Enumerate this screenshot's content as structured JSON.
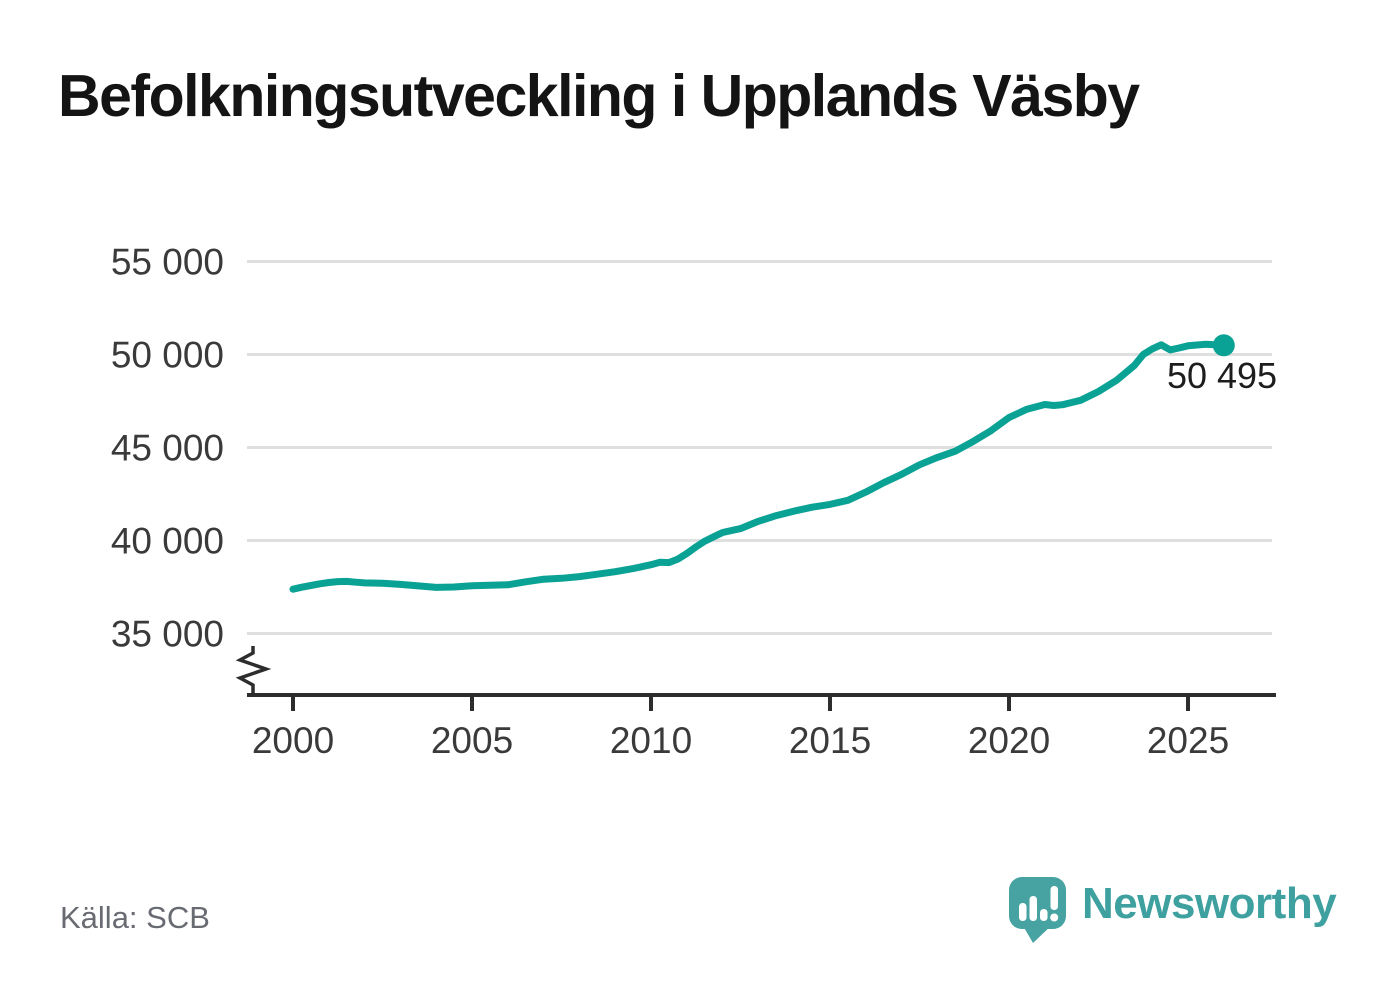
{
  "title": "Befolkningsutveckling i Upplands Väsby",
  "source": {
    "label": "Källa: SCB"
  },
  "brand": {
    "name": "Newsworthy",
    "icon": "newsworthy-speech-bubble-chart-icon",
    "color": "#3fa0a0"
  },
  "colors": {
    "line": "#0aa294",
    "grid": "#dfdfdf",
    "axis": "#2d2d2d",
    "tick_text": "#3a3a3a",
    "title_text": "#141414",
    "muted_text": "#696b73"
  },
  "chart_data": {
    "type": "line",
    "title": "Befolkningsutveckling i Upplands Väsby",
    "xlabel": "",
    "ylabel": "",
    "source": "Källa: SCB",
    "grid": "horizontal-only",
    "legend": "none",
    "y_axis_break": true,
    "xlim": [
      1998.7,
      2027.4
    ],
    "ylim": [
      35000,
      55000
    ],
    "yticks": [
      {
        "value": 55000,
        "label": "55 000"
      },
      {
        "value": 50000,
        "label": "50 000"
      },
      {
        "value": 45000,
        "label": "45 000"
      },
      {
        "value": 40000,
        "label": "40 000"
      },
      {
        "value": 35000,
        "label": "35 000"
      }
    ],
    "xticks": [
      {
        "value": 2000,
        "label": "2000"
      },
      {
        "value": 2005,
        "label": "2005"
      },
      {
        "value": 2010,
        "label": "2010"
      },
      {
        "value": 2015,
        "label": "2015"
      },
      {
        "value": 2020,
        "label": "2020"
      },
      {
        "value": 2025,
        "label": "2025"
      }
    ],
    "series": [
      {
        "name": "population",
        "x": [
          2000,
          2000.25,
          2000.5,
          2000.75,
          2001,
          2001.25,
          2001.5,
          2001.75,
          2002,
          2002.5,
          2003,
          2003.5,
          2004,
          2004.5,
          2005,
          2005.5,
          2006,
          2006.5,
          2007,
          2007.5,
          2008,
          2008.5,
          2009,
          2009.5,
          2010,
          2010.25,
          2010.5,
          2010.75,
          2011,
          2011.25,
          2011.5,
          2011.75,
          2012,
          2012.5,
          2013,
          2013.5,
          2014,
          2014.5,
          2015,
          2015.5,
          2016,
          2016.5,
          2017,
          2017.5,
          2018,
          2018.5,
          2019,
          2019.5,
          2020,
          2020.5,
          2021,
          2021.25,
          2021.5,
          2021.75,
          2022,
          2022.5,
          2023,
          2023.5,
          2023.75,
          2024,
          2024.25,
          2024.5,
          2024.75,
          2025,
          2025.5,
          2026
        ],
        "values": [
          37380,
          37490,
          37580,
          37670,
          37740,
          37790,
          37800,
          37760,
          37720,
          37700,
          37640,
          37560,
          37480,
          37500,
          37570,
          37590,
          37620,
          37780,
          37920,
          37970,
          38060,
          38190,
          38320,
          38490,
          38700,
          38830,
          38810,
          39000,
          39300,
          39650,
          39960,
          40200,
          40430,
          40640,
          41030,
          41340,
          41580,
          41790,
          41940,
          42160,
          42600,
          43110,
          43560,
          44070,
          44470,
          44800,
          45330,
          45910,
          46610,
          47060,
          47310,
          47260,
          47300,
          47420,
          47540,
          48010,
          48610,
          49410,
          50000,
          50300,
          50520,
          50250,
          50350,
          50470,
          50550,
          50495
        ]
      }
    ],
    "last_point": {
      "x": 2026,
      "value": 50495,
      "label": "50 495"
    }
  }
}
